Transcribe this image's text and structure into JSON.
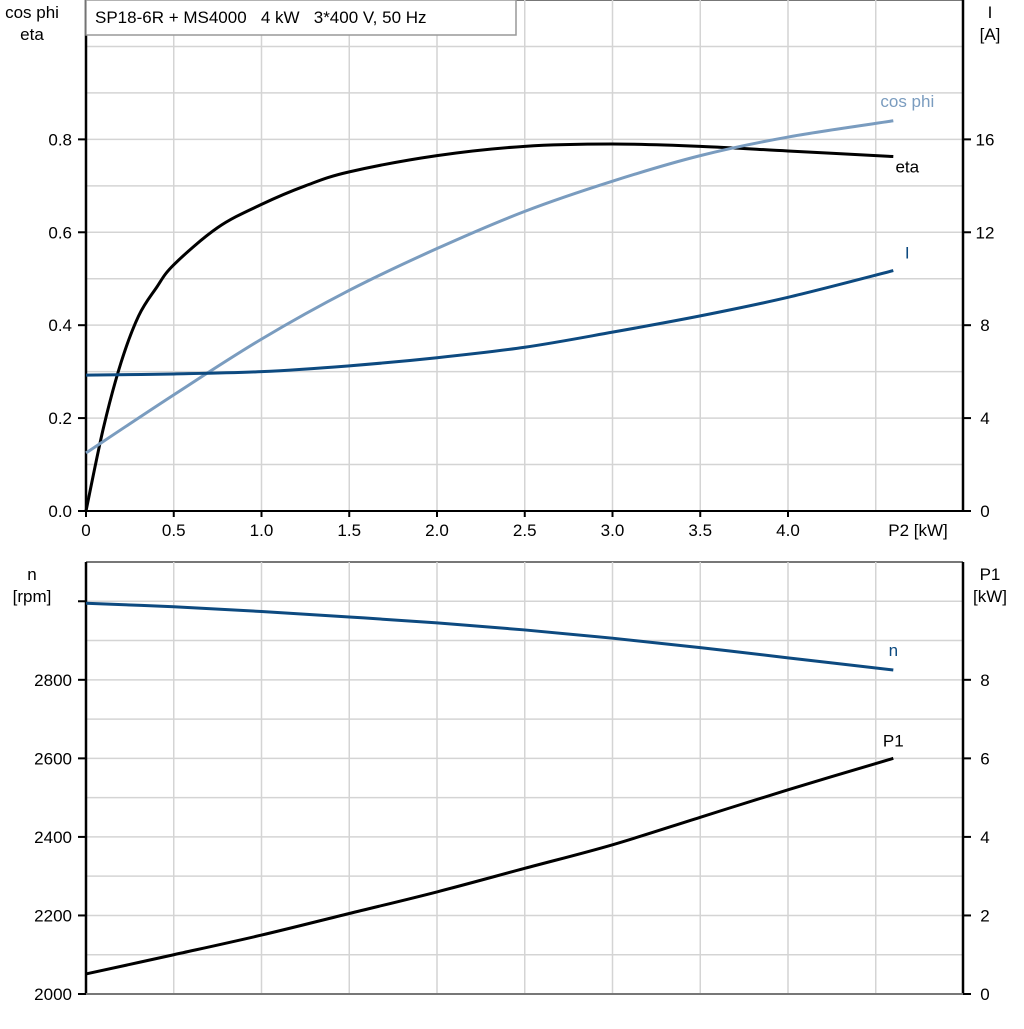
{
  "chart_data": [
    {
      "type": "line",
      "title": "SP18-6R + MS4000   4 kW   3*400 V, 50 Hz",
      "xlabel": "P2 [kW]",
      "ylabel_left": [
        "cos phi",
        "eta"
      ],
      "ylabel_right": [
        "I",
        "[A]"
      ],
      "xlim": [
        0,
        5.0
      ],
      "ylim_left": [
        0,
        1.1
      ],
      "ylim_right": [
        0,
        22
      ],
      "x_ticks": [
        "0",
        "0.5",
        "1.0",
        "1.5",
        "2.0",
        "2.5",
        "3.0",
        "3.5",
        "4.0"
      ],
      "y_left_ticks": [
        "0.0",
        "0.2",
        "0.4",
        "0.6",
        "0.8"
      ],
      "y_right_ticks": [
        "0",
        "4",
        "8",
        "12",
        "16"
      ],
      "grid": true,
      "series": [
        {
          "name": "eta",
          "axis": "left",
          "color": "#000000",
          "x": [
            0,
            0.1,
            0.2,
            0.3,
            0.4,
            0.5,
            0.75,
            1.0,
            1.25,
            1.5,
            2.0,
            2.5,
            3.0,
            3.5,
            4.0,
            4.6
          ],
          "y": [
            0,
            0.18,
            0.32,
            0.42,
            0.48,
            0.53,
            0.61,
            0.66,
            0.7,
            0.73,
            0.765,
            0.785,
            0.79,
            0.785,
            0.775,
            0.763
          ]
        },
        {
          "name": "cos phi",
          "axis": "left",
          "color": "#7a9cbf",
          "x": [
            0,
            0.5,
            1.0,
            1.5,
            2.0,
            2.5,
            3.0,
            3.5,
            4.0,
            4.6
          ],
          "y": [
            0.125,
            0.25,
            0.37,
            0.475,
            0.565,
            0.645,
            0.71,
            0.765,
            0.805,
            0.84
          ]
        },
        {
          "name": "I",
          "axis": "right",
          "color": "#0d4a80",
          "x": [
            0,
            0.5,
            1.0,
            1.5,
            2.0,
            2.5,
            3.0,
            3.5,
            4.0,
            4.6
          ],
          "y": [
            5.85,
            5.9,
            6.0,
            6.25,
            6.6,
            7.05,
            7.7,
            8.4,
            9.2,
            10.35
          ]
        }
      ]
    },
    {
      "type": "line",
      "xlim": [
        0,
        5.0
      ],
      "ylabel_left": [
        "n",
        "[rpm]"
      ],
      "ylabel_right": [
        "P1",
        "[kW]"
      ],
      "ylim_left": [
        2000,
        3100
      ],
      "ylim_right": [
        0,
        11
      ],
      "y_left_ticks": [
        "2000",
        "2200",
        "2400",
        "2600",
        "2800"
      ],
      "y_right_ticks": [
        "0",
        "2",
        "4",
        "6",
        "8"
      ],
      "grid": true,
      "series": [
        {
          "name": "n",
          "axis": "left",
          "color": "#0d4a80",
          "x": [
            0,
            0.5,
            1.0,
            1.5,
            2.0,
            2.5,
            3.0,
            3.5,
            4.0,
            4.6
          ],
          "y": [
            2995,
            2986,
            2974,
            2960,
            2945,
            2927,
            2906,
            2882,
            2856,
            2825
          ]
        },
        {
          "name": "P1",
          "axis": "right",
          "color": "#000000",
          "x": [
            0,
            0.5,
            1.0,
            1.5,
            2.0,
            2.5,
            3.0,
            3.5,
            4.0,
            4.6
          ],
          "y": [
            0.51,
            1.0,
            1.5,
            2.05,
            2.6,
            3.2,
            3.8,
            4.5,
            5.2,
            6.0
          ]
        }
      ]
    }
  ]
}
